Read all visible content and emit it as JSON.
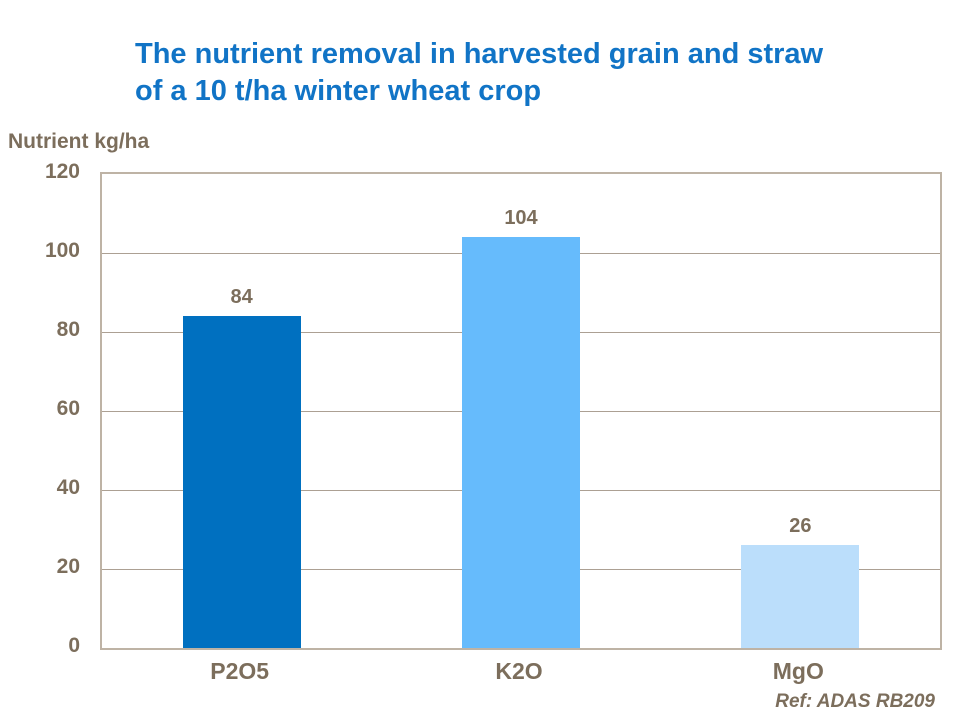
{
  "title": "The nutrient removal in harvested grain and straw\nof a 10 t/ha winter wheat crop",
  "y_axis_title": "Nutrient kg/ha",
  "reference": "Ref: ADAS RB209",
  "colors": {
    "title": "#1174C6",
    "text": "#7C6E5C",
    "plot_border": "#BEB3A5",
    "gridline": "#ACA093",
    "bars": [
      "#0070C0",
      "#66BBFC",
      "#BBDEFB"
    ]
  },
  "chart_data": {
    "type": "bar",
    "title": "The nutrient removal in harvested grain and straw of a 10 t/ha winter wheat crop",
    "categories": [
      "P2O5",
      "K2O",
      "MgO"
    ],
    "values": [
      84,
      104,
      26
    ],
    "data_labels": [
      "84",
      "104",
      "26"
    ],
    "xlabel": "",
    "ylabel": "Nutrient kg/ha",
    "ylim": [
      0,
      120
    ],
    "yticks": [
      0,
      20,
      40,
      60,
      80,
      100,
      120
    ],
    "grid": true,
    "legend": false,
    "annotation": "Ref: ADAS RB209"
  }
}
